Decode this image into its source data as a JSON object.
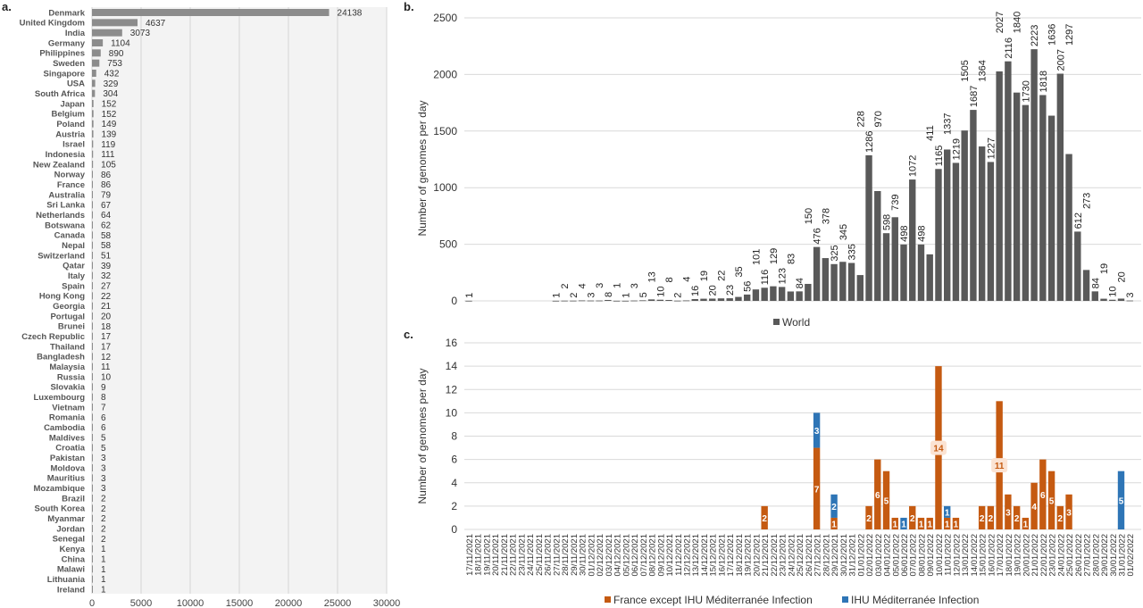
{
  "chart_data": [
    {
      "panel_label": "a.",
      "type": "bar",
      "orientation": "horizontal",
      "color": "#8c8c8c",
      "xlim": [
        0,
        30000
      ],
      "xticks": [
        0,
        5000,
        10000,
        15000,
        20000,
        25000,
        30000
      ],
      "grid": true,
      "categories": [
        "Denmark",
        "United Kingdom",
        "India",
        "Germany",
        "Philippines",
        "Sweden",
        "Singapore",
        "USA",
        "South Africa",
        "Japan",
        "Belgium",
        "Poland",
        "Austria",
        "Israel",
        "Indonesia",
        "New Zealand",
        "Norway",
        "France",
        "Australia",
        "Sri Lanka",
        "Netherlands",
        "Botswana",
        "Canada",
        "Nepal",
        "Switzerland",
        "Qatar",
        "Italy",
        "Spain",
        "Hong Kong",
        "Georgia",
        "Portugal",
        "Brunei",
        "Czech Republic",
        "Thailand",
        "Bangladesh",
        "Malaysia",
        "Russia",
        "Slovakia",
        "Luxembourg",
        "Vietnam",
        "Romania",
        "Cambodia",
        "Maldives",
        "Croatia",
        "Pakistan",
        "Moldova",
        "Mauritius",
        "Mozambique",
        "Brazil",
        "South Korea",
        "Myanmar",
        "Jordan",
        "Senegal",
        "Kenya",
        "China",
        "Malawi",
        "Lithuania",
        "Ireland"
      ],
      "values": [
        24138,
        4637,
        3073,
        1104,
        890,
        753,
        432,
        329,
        304,
        152,
        152,
        149,
        139,
        119,
        111,
        105,
        86,
        86,
        79,
        67,
        64,
        62,
        58,
        58,
        51,
        39,
        32,
        27,
        22,
        21,
        20,
        18,
        17,
        17,
        12,
        11,
        10,
        9,
        8,
        7,
        6,
        6,
        5,
        5,
        3,
        3,
        3,
        3,
        2,
        2,
        2,
        2,
        2,
        1,
        1,
        1,
        1,
        1
      ]
    },
    {
      "panel_label": "b.",
      "type": "bar",
      "color": "#595959",
      "ylabel": "Number of genomes per day",
      "ylim": [
        0,
        2500
      ],
      "yticks": [
        0,
        500,
        1000,
        1500,
        2000,
        2500
      ],
      "grid": true,
      "legend": "bottom",
      "series": [
        {
          "name": "World",
          "values": [
            1,
            0,
            0,
            0,
            0,
            0,
            0,
            0,
            0,
            0,
            1,
            2,
            2,
            4,
            3,
            3,
            8,
            1,
            1,
            3,
            5,
            13,
            10,
            8,
            2,
            4,
            16,
            19,
            20,
            22,
            23,
            35,
            56,
            101,
            116,
            129,
            123,
            83,
            84,
            150,
            476,
            378,
            325,
            345,
            335,
            228,
            1286,
            970,
            598,
            739,
            498,
            1072,
            498,
            411,
            1165,
            1337,
            1219,
            1505,
            1687,
            1364,
            1227,
            2027,
            2116,
            1840,
            1730,
            2223,
            1818,
            1636,
            2007,
            1297,
            612,
            273,
            84,
            19,
            10,
            20,
            3
          ]
        }
      ]
    },
    {
      "panel_label": "c.",
      "type": "bar",
      "stacked": true,
      "ylabel": "Number of genomes per day",
      "ylim": [
        0,
        16
      ],
      "yticks": [
        0,
        2,
        4,
        6,
        8,
        10,
        12,
        14,
        16
      ],
      "grid": true,
      "legend": "bottom",
      "x": [
        "17/11/2021",
        "18/11/2021",
        "19/11/2021",
        "20/11/2021",
        "21/11/2021",
        "22/11/2021",
        "23/11/2021",
        "24/11/2021",
        "25/11/2021",
        "26/11/2021",
        "27/11/2021",
        "28/11/2021",
        "29/11/2021",
        "30/11/2021",
        "01/12/2021",
        "02/12/2021",
        "03/12/2021",
        "04/12/2021",
        "05/12/2021",
        "06/12/2021",
        "07/12/2021",
        "08/12/2021",
        "09/12/2021",
        "10/12/2021",
        "11/12/2021",
        "12/12/2021",
        "13/12/2021",
        "14/12/2021",
        "15/12/2021",
        "16/12/2021",
        "17/12/2021",
        "18/12/2021",
        "19/12/2021",
        "20/12/2021",
        "21/12/2021",
        "22/12/2021",
        "23/12/2021",
        "24/12/2021",
        "25/12/2021",
        "26/12/2021",
        "27/12/2021",
        "28/12/2021",
        "29/12/2021",
        "30/12/2021",
        "31/12/2021",
        "01/01/2022",
        "02/01/2022",
        "03/01/2022",
        "04/01/2022",
        "05/01/2022",
        "06/01/2022",
        "07/01/2022",
        "08/01/2022",
        "09/01/2022",
        "10/01/2022",
        "11/01/2022",
        "12/01/2022",
        "13/01/2022",
        "14/01/2022",
        "15/01/2022",
        "16/01/2022",
        "17/01/2022",
        "18/01/2022",
        "19/01/2022",
        "20/01/2022",
        "21/01/2022",
        "22/01/2022",
        "23/01/2022",
        "24/01/2022",
        "25/01/2022",
        "26/01/2022",
        "27/01/2022",
        "28/01/2022",
        "29/01/2022",
        "30/01/2022",
        "31/01/2022",
        "01/02/2022"
      ],
      "series": [
        {
          "name": "France except IHU Méditerranée Infection",
          "color": "#c55a11",
          "values": [
            0,
            0,
            0,
            0,
            0,
            0,
            0,
            0,
            0,
            0,
            0,
            0,
            0,
            0,
            0,
            0,
            0,
            0,
            0,
            0,
            0,
            0,
            0,
            0,
            0,
            0,
            0,
            0,
            0,
            0,
            0,
            0,
            0,
            0,
            2,
            0,
            0,
            0,
            0,
            0,
            7,
            0,
            1,
            0,
            0,
            0,
            2,
            6,
            5,
            1,
            0,
            2,
            1,
            1,
            14,
            1,
            1,
            0,
            0,
            2,
            2,
            11,
            3,
            2,
            1,
            4,
            6,
            5,
            2,
            3,
            0,
            0,
            0,
            0,
            0,
            0,
            0
          ]
        },
        {
          "name": "IHU Méditerranée Infection",
          "color": "#2e75b6",
          "values": [
            0,
            0,
            0,
            0,
            0,
            0,
            0,
            0,
            0,
            0,
            0,
            0,
            0,
            0,
            0,
            0,
            0,
            0,
            0,
            0,
            0,
            0,
            0,
            0,
            0,
            0,
            0,
            0,
            0,
            0,
            0,
            0,
            0,
            0,
            0,
            0,
            0,
            0,
            0,
            0,
            3,
            0,
            2,
            0,
            0,
            0,
            0,
            0,
            0,
            0,
            1,
            0,
            0,
            0,
            0,
            1,
            0,
            0,
            0,
            0,
            0,
            0,
            0,
            0,
            0,
            0,
            0,
            0,
            0,
            0,
            0,
            0,
            0,
            0,
            0,
            5,
            0
          ]
        }
      ]
    }
  ]
}
